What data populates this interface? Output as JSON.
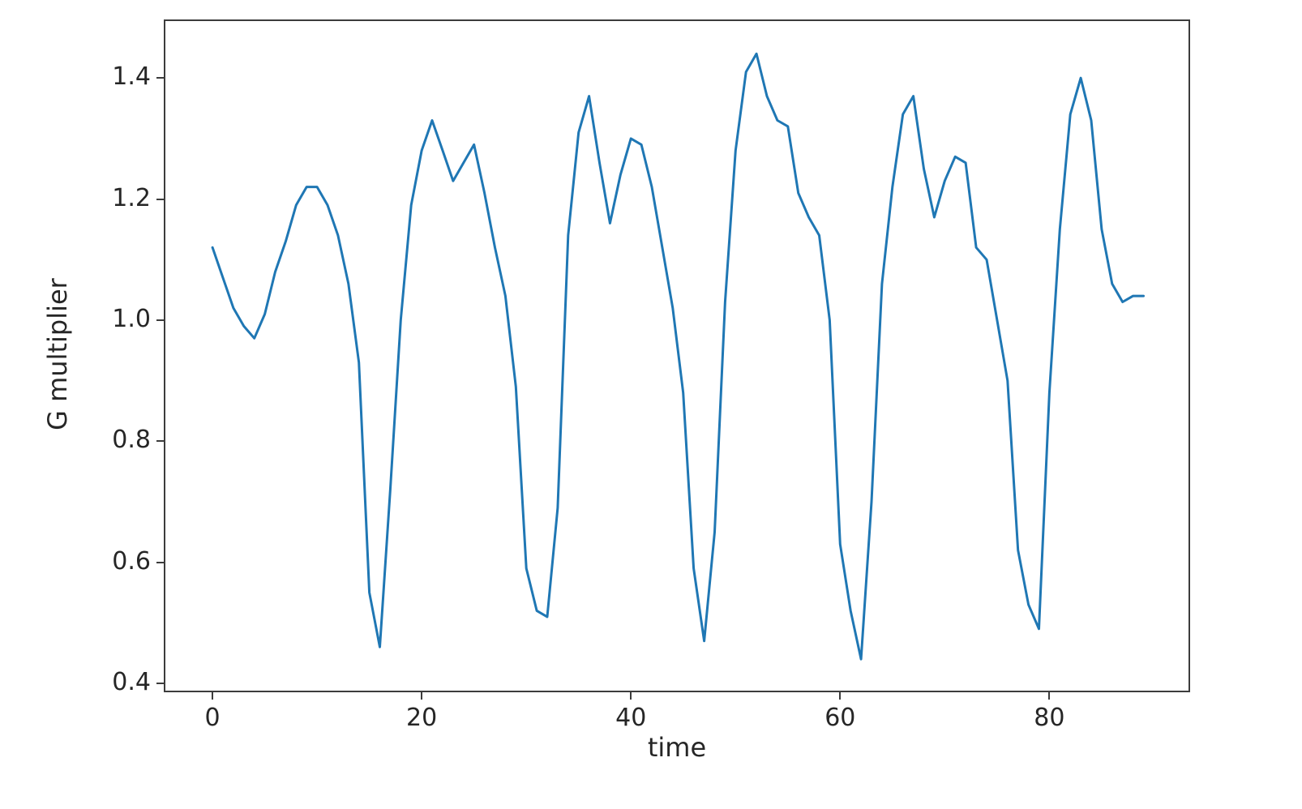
{
  "figure": {
    "background": "#ffffff",
    "spine_color": "#3c3c3c",
    "tick_color": "#3c3c3c",
    "text_color": "#262626"
  },
  "chart_data": {
    "type": "line",
    "title": "",
    "xlabel": "time",
    "ylabel": "G multiplier",
    "line_color": "#1f77b4",
    "line_width": 3,
    "grid": false,
    "legend": null,
    "xlim": [
      -4.5,
      93.3
    ],
    "ylim": [
      0.388,
      1.494
    ],
    "xticks": {
      "values": [
        0,
        20,
        40,
        60,
        80
      ],
      "labels": [
        "0",
        "20",
        "40",
        "60",
        "80"
      ]
    },
    "yticks": {
      "values": [
        0.4,
        0.6,
        0.8,
        1.0,
        1.2,
        1.4
      ],
      "labels": [
        "0.4",
        "0.6",
        "0.8",
        "1.0",
        "1.2",
        "1.4"
      ]
    },
    "series": [
      {
        "name": "G multiplier",
        "x": [
          0,
          1,
          2,
          3,
          4,
          5,
          6,
          7,
          8,
          9,
          10,
          11,
          12,
          13,
          14,
          15,
          16,
          17,
          18,
          19,
          20,
          21,
          22,
          23,
          24,
          25,
          26,
          27,
          28,
          29,
          30,
          31,
          32,
          33,
          34,
          35,
          36,
          37,
          38,
          39,
          40,
          41,
          42,
          43,
          44,
          45,
          46,
          47,
          48,
          49,
          50,
          51,
          52,
          53,
          54,
          55,
          56,
          57,
          58,
          59,
          60,
          61,
          62,
          63,
          64,
          65,
          66,
          67,
          68,
          69,
          70,
          71,
          72,
          73,
          74,
          75,
          76,
          77,
          78,
          79,
          80,
          81,
          82,
          83,
          84,
          85,
          86,
          87,
          88,
          89
        ],
        "y": [
          1.12,
          1.07,
          1.02,
          0.99,
          0.97,
          1.01,
          1.08,
          1.13,
          1.19,
          1.22,
          1.22,
          1.19,
          1.14,
          1.06,
          0.93,
          0.55,
          0.46,
          0.72,
          1.0,
          1.19,
          1.28,
          1.33,
          1.28,
          1.23,
          1.26,
          1.29,
          1.21,
          1.12,
          1.04,
          0.89,
          0.59,
          0.52,
          0.51,
          0.69,
          1.14,
          1.31,
          1.37,
          1.26,
          1.16,
          1.24,
          1.3,
          1.29,
          1.22,
          1.12,
          1.02,
          0.88,
          0.59,
          0.47,
          0.65,
          1.03,
          1.28,
          1.41,
          1.44,
          1.37,
          1.33,
          1.32,
          1.21,
          1.17,
          1.14,
          1.0,
          0.63,
          0.52,
          0.44,
          0.7,
          1.06,
          1.22,
          1.34,
          1.37,
          1.25,
          1.17,
          1.23,
          1.27,
          1.26,
          1.12,
          1.1,
          1.0,
          0.9,
          0.62,
          0.53,
          0.49,
          0.88,
          1.15,
          1.34,
          1.4,
          1.33,
          1.15,
          1.06,
          1.03,
          1.04,
          1.04
        ]
      }
    ]
  }
}
